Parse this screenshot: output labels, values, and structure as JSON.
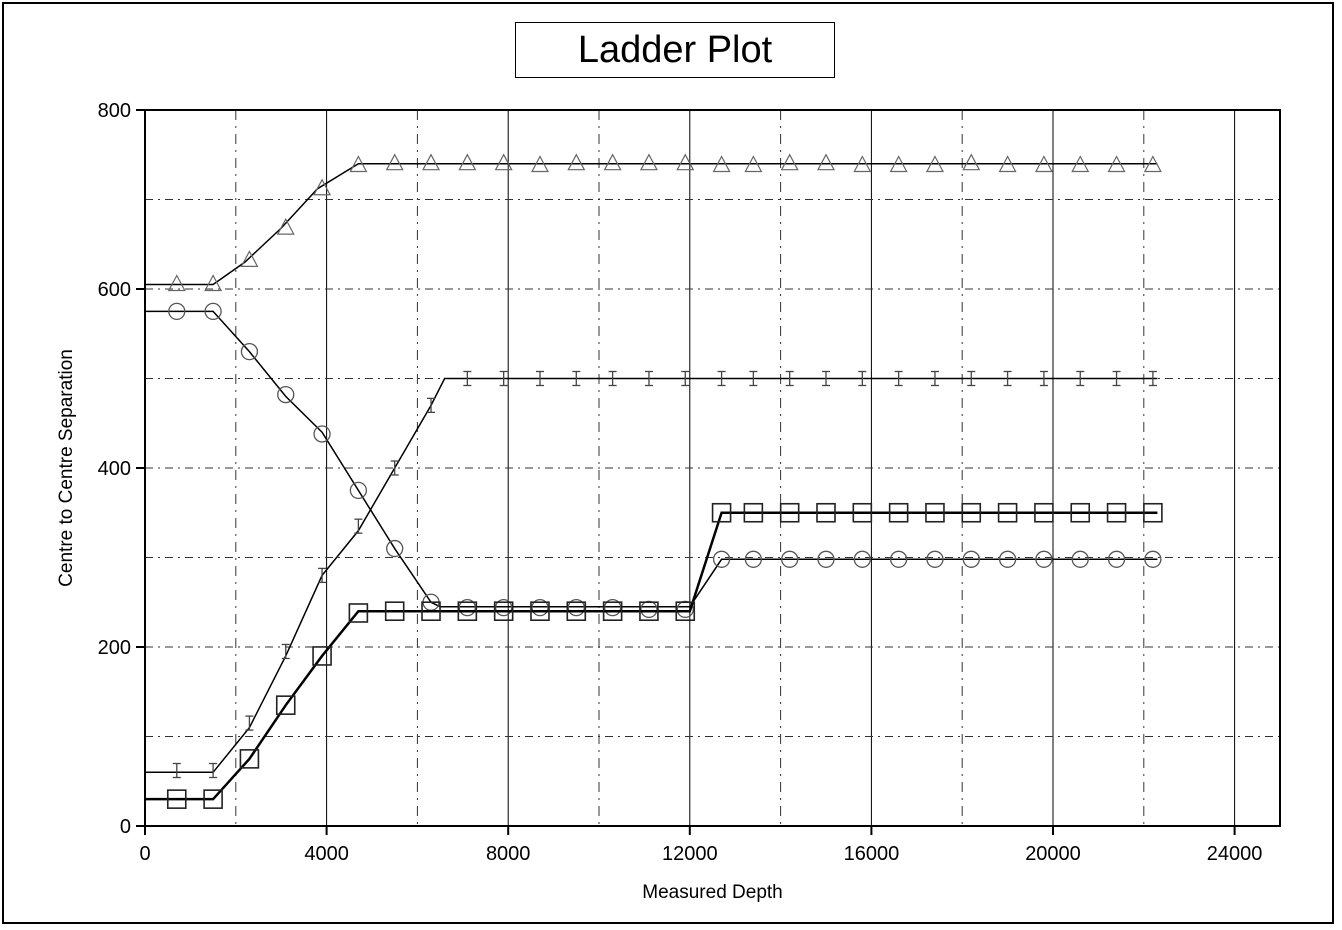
{
  "chart_data": {
    "type": "line",
    "title": "Ladder Plot",
    "xlabel": "Measured Depth",
    "ylabel": "Centre to Centre Separation",
    "xlim": [
      0,
      25000
    ],
    "ylim": [
      0,
      800
    ],
    "xticks": [
      0,
      4000,
      8000,
      12000,
      16000,
      20000,
      24000
    ],
    "yticks": [
      0,
      200,
      400,
      600,
      800
    ],
    "grid": true,
    "legend": "none",
    "series": [
      {
        "marker": "triangle",
        "line": {
          "x": [
            0,
            1500,
            2200,
            3000,
            3800,
            4700,
            22300
          ],
          "y": [
            605,
            605,
            630,
            668,
            712,
            740,
            740
          ]
        },
        "markers": {
          "x": [
            700,
            1500,
            2300,
            3100,
            3900,
            4700,
            5500,
            6300,
            7100,
            7900,
            8700,
            9500,
            10300,
            11100,
            11900,
            12700,
            13400,
            14200,
            15000,
            15800,
            16600,
            17400,
            18200,
            19000,
            19800,
            20600,
            21400,
            22200
          ],
          "y": [
            605,
            605,
            632,
            668,
            712,
            738,
            740,
            740,
            740,
            740,
            738,
            740,
            740,
            740,
            740,
            738,
            738,
            740,
            740,
            738,
            738,
            738,
            740,
            738,
            738,
            738,
            738,
            738
          ]
        }
      },
      {
        "marker": "circle",
        "line": {
          "x": [
            0,
            1500,
            2300,
            3100,
            3900,
            4700,
            5500,
            6300,
            6500,
            12000,
            12700,
            22300
          ],
          "y": [
            575,
            575,
            530,
            480,
            440,
            375,
            310,
            250,
            245,
            245,
            298,
            298
          ]
        },
        "markers": {
          "x": [
            700,
            1500,
            2300,
            3100,
            3900,
            4700,
            5500,
            6300,
            7100,
            7900,
            8700,
            9500,
            10300,
            11100,
            11900,
            12700,
            13400,
            14200,
            15000,
            15800,
            16600,
            17400,
            18200,
            19000,
            19800,
            20600,
            21400,
            22200
          ],
          "y": [
            575,
            575,
            530,
            482,
            438,
            375,
            310,
            250,
            244,
            244,
            244,
            244,
            244,
            242,
            242,
            298,
            298,
            298,
            298,
            298,
            298,
            298,
            298,
            298,
            298,
            298,
            298,
            298
          ]
        }
      },
      {
        "marker": "tick",
        "line": {
          "x": [
            0,
            1500,
            2300,
            3100,
            3900,
            4700,
            5500,
            6300,
            6600,
            22300
          ],
          "y": [
            60,
            60,
            110,
            190,
            280,
            330,
            400,
            470,
            500,
            500
          ]
        },
        "markers": {
          "x": [
            700,
            1500,
            2300,
            3100,
            3900,
            4700,
            5500,
            6300,
            7100,
            7900,
            8700,
            9500,
            10300,
            11100,
            11900,
            12700,
            13400,
            14200,
            15000,
            15800,
            16600,
            17400,
            18200,
            19000,
            19800,
            20600,
            21400,
            22200
          ],
          "y": [
            62,
            62,
            115,
            195,
            280,
            335,
            400,
            470,
            500,
            500,
            500,
            500,
            500,
            500,
            500,
            500,
            500,
            500,
            500,
            500,
            500,
            500,
            500,
            500,
            500,
            500,
            500,
            500
          ]
        }
      },
      {
        "marker": "square",
        "line": {
          "x": [
            0,
            1500,
            2300,
            3100,
            3900,
            4700,
            12000,
            12700,
            22300
          ],
          "y": [
            30,
            30,
            75,
            135,
            190,
            240,
            240,
            350,
            350
          ]
        },
        "markers": {
          "x": [
            700,
            1500,
            2300,
            3100,
            3900,
            4700,
            5500,
            6300,
            7100,
            7900,
            8700,
            9500,
            10300,
            11100,
            11900,
            12700,
            13400,
            14200,
            15000,
            15800,
            16600,
            17400,
            18200,
            19000,
            19800,
            20600,
            21400,
            22200
          ],
          "y": [
            30,
            30,
            75,
            135,
            190,
            238,
            240,
            240,
            240,
            240,
            240,
            240,
            240,
            240,
            240,
            350,
            350,
            350,
            350,
            350,
            350,
            350,
            350,
            350,
            350,
            350,
            350,
            350
          ]
        }
      }
    ]
  }
}
